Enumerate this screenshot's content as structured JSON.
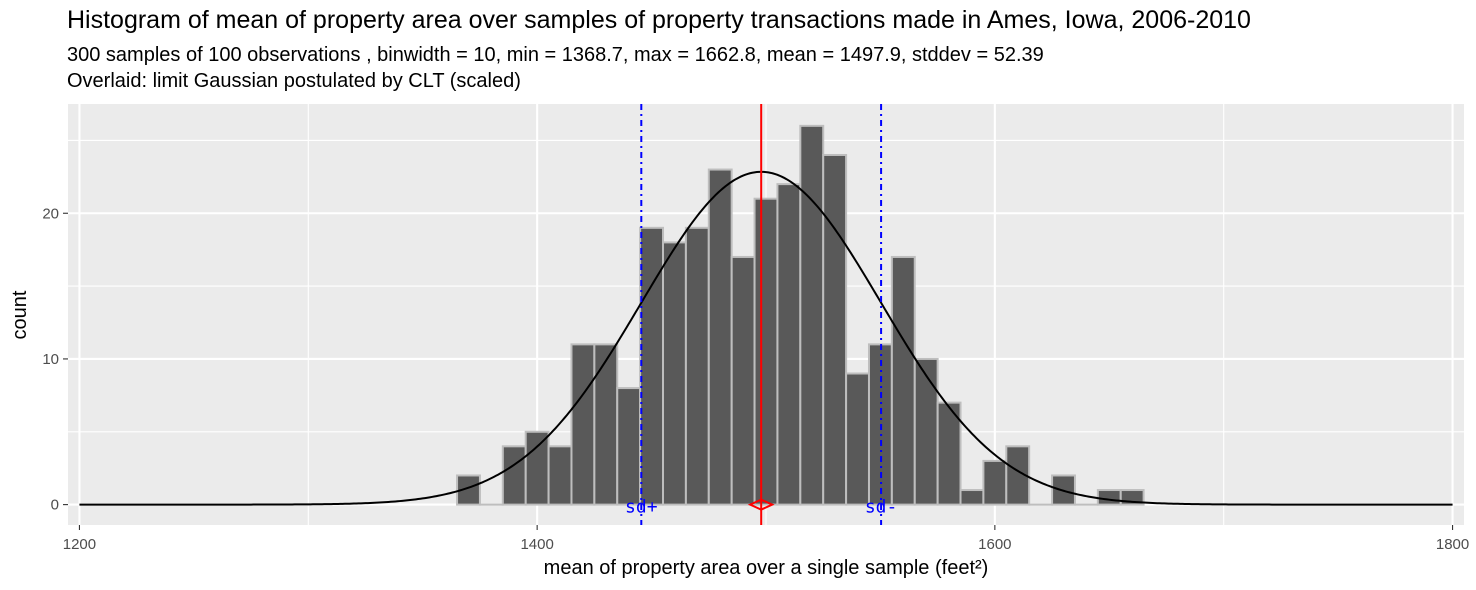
{
  "chart_data": {
    "type": "bar",
    "title": "Histogram of mean of property area over samples of property transactions made in Ames, Iowa, 2006-2010",
    "subtitle_lines": [
      "300 samples of 100 observations , binwidth = 10, min = 1368.7, max = 1662.8, mean = 1497.9, stddev = 52.39",
      "Overlaid: limit Gaussian postulated by CLT (scaled)"
    ],
    "xlabel": "mean of property area over a single sample (feet²)",
    "ylabel": "count",
    "xlim": [
      1195,
      1805
    ],
    "ylim": [
      -1.4,
      27.5
    ],
    "x_ticks": [
      1200,
      1400,
      1600,
      1800
    ],
    "y_ticks": [
      0,
      10,
      20
    ],
    "binwidth": 10,
    "bins": [
      {
        "x": 1370,
        "count": 2
      },
      {
        "x": 1380,
        "count": 0
      },
      {
        "x": 1390,
        "count": 4
      },
      {
        "x": 1400,
        "count": 5
      },
      {
        "x": 1410,
        "count": 4
      },
      {
        "x": 1420,
        "count": 11
      },
      {
        "x": 1430,
        "count": 11
      },
      {
        "x": 1440,
        "count": 8
      },
      {
        "x": 1450,
        "count": 19
      },
      {
        "x": 1460,
        "count": 18
      },
      {
        "x": 1470,
        "count": 19
      },
      {
        "x": 1480,
        "count": 23
      },
      {
        "x": 1490,
        "count": 17
      },
      {
        "x": 1500,
        "count": 21
      },
      {
        "x": 1510,
        "count": 22
      },
      {
        "x": 1520,
        "count": 26
      },
      {
        "x": 1530,
        "count": 24
      },
      {
        "x": 1540,
        "count": 9
      },
      {
        "x": 1550,
        "count": 11
      },
      {
        "x": 1560,
        "count": 17
      },
      {
        "x": 1570,
        "count": 10
      },
      {
        "x": 1580,
        "count": 7
      },
      {
        "x": 1590,
        "count": 1
      },
      {
        "x": 1600,
        "count": 3
      },
      {
        "x": 1610,
        "count": 4
      },
      {
        "x": 1620,
        "count": 0
      },
      {
        "x": 1630,
        "count": 2
      },
      {
        "x": 1640,
        "count": 0
      },
      {
        "x": 1650,
        "count": 1
      },
      {
        "x": 1660,
        "count": 1
      }
    ],
    "mean": 1497.9,
    "stddev": 52.39,
    "n_samples": 300,
    "gaussian_x_range": [
      1200,
      1800
    ],
    "annotations": [
      {
        "label": "sd+",
        "x": 1445.51,
        "color": "#0000ff"
      },
      {
        "label": "sd-",
        "x": 1550.29,
        "color": "#0000ff"
      }
    ],
    "mean_line_color": "#ff0000",
    "bar_fill": "#595959",
    "bar_outline": "#bebebe",
    "curve_color": "#000000",
    "sd_line_color": "#0000ff",
    "panel_background": "#ebebeb",
    "grid": true
  }
}
